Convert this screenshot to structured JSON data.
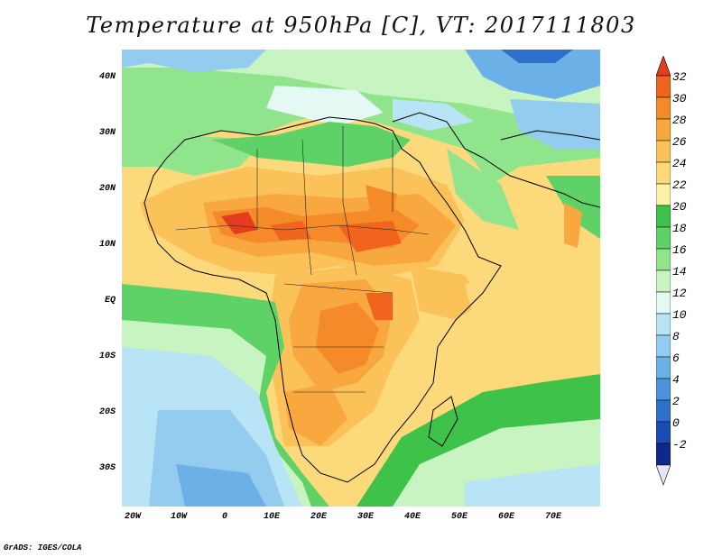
{
  "title": "Temperature at 950hPa [C], VT: 2017111803",
  "credit": "GrADS: IGES/COLA",
  "map": {
    "lat_labels": [
      "40N",
      "30N",
      "20N",
      "10N",
      "EQ",
      "10S",
      "20S",
      "30S"
    ],
    "lon_labels": [
      "20W",
      "10W",
      "0",
      "10E",
      "20E",
      "30E",
      "40E",
      "50E",
      "60E",
      "70E"
    ],
    "lon_range": [
      -22,
      80
    ],
    "lat_range": [
      -37,
      45
    ]
  },
  "colorbar": {
    "labels": [
      "32",
      "30",
      "28",
      "26",
      "24",
      "22",
      "20",
      "18",
      "16",
      "14",
      "12",
      "10",
      "8",
      "6",
      "4",
      "2",
      "0",
      "-2"
    ],
    "colors": [
      "#e43c1e",
      "#f0641e",
      "#f58a28",
      "#f9a840",
      "#fbc25a",
      "#fcd97a",
      "#fdf0a8",
      "#3ec24a",
      "#5fd267",
      "#8fe48c",
      "#c8f4c2",
      "#e4f8f4",
      "#b8e4f6",
      "#94ccf0",
      "#6cb0e8",
      "#4c92dc",
      "#2c70cc",
      "#1a4cb4",
      "#10288c",
      "#0a1060"
    ]
  }
}
